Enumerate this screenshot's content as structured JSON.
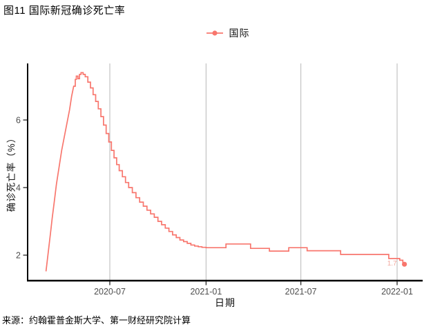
{
  "figure": {
    "title": "图11 国际新冠确诊死亡率",
    "source": "来源：约翰霍普金斯大学、第一财经研究院计算"
  },
  "legend": {
    "position": "top-center",
    "items": [
      {
        "label": "国际",
        "color": "#F8766D",
        "marker": "point-on-line"
      }
    ]
  },
  "axes": {
    "x_title": "日期",
    "y_title": "确诊死亡率（%）"
  },
  "colors": {
    "series": "#F8766D",
    "grid": "#c3c3c3",
    "axis_line": "#000000",
    "tick": "#333333",
    "tick_label": "#4d4d4d",
    "end_label": "#f2a89e",
    "background": "#ffffff"
  },
  "chart_data": {
    "type": "line",
    "title": "图11 国际新冠确诊死亡率",
    "xlabel": "日期",
    "ylabel": "确诊死亡率（%）",
    "legend_position": "top-center",
    "grid": "vertical-major-only",
    "xlim": [
      "2020-01-26",
      "2022-02-19"
    ],
    "ylim": [
      1.25,
      7.67
    ],
    "x_ticks": [
      {
        "date": "2020-07-01",
        "label": "2020-07"
      },
      {
        "date": "2021-01-01",
        "label": "2021-01"
      },
      {
        "date": "2021-07-01",
        "label": "2021-07"
      },
      {
        "date": "2022-01-01",
        "label": "2022-01"
      }
    ],
    "y_ticks": [
      {
        "value": 2,
        "label": "2"
      },
      {
        "value": 4,
        "label": "4"
      },
      {
        "value": 6,
        "label": "6"
      }
    ],
    "series": [
      {
        "name": "国际",
        "color": "#F8766D",
        "style": "step-after",
        "points": [
          [
            "2020-03-01",
            1.52
          ],
          [
            "2020-03-04",
            1.9
          ],
          [
            "2020-03-07",
            2.3
          ],
          [
            "2020-03-10",
            2.7
          ],
          [
            "2020-03-13",
            3.1
          ],
          [
            "2020-03-17",
            3.6
          ],
          [
            "2020-03-21",
            4.1
          ],
          [
            "2020-03-26",
            4.6
          ],
          [
            "2020-03-31",
            5.1
          ],
          [
            "2020-04-05",
            5.5
          ],
          [
            "2020-04-10",
            5.9
          ],
          [
            "2020-04-15",
            6.3
          ],
          [
            "2020-04-19",
            6.7
          ],
          [
            "2020-04-23",
            7.0
          ],
          [
            "2020-04-26",
            7.2
          ],
          [
            "2020-04-28",
            7.3
          ],
          [
            "2020-05-01",
            7.22
          ],
          [
            "2020-05-04",
            7.35
          ],
          [
            "2020-05-07",
            7.4
          ],
          [
            "2020-05-11",
            7.35
          ],
          [
            "2020-05-15",
            7.28
          ],
          [
            "2020-05-20",
            7.12
          ],
          [
            "2020-05-25",
            6.95
          ],
          [
            "2020-05-30",
            6.75
          ],
          [
            "2020-06-04",
            6.55
          ],
          [
            "2020-06-09",
            6.33
          ],
          [
            "2020-06-14",
            6.1
          ],
          [
            "2020-06-19",
            5.85
          ],
          [
            "2020-06-24",
            5.6
          ],
          [
            "2020-06-29",
            5.35
          ],
          [
            "2020-07-04",
            5.1
          ],
          [
            "2020-07-09",
            4.88
          ],
          [
            "2020-07-14",
            4.68
          ],
          [
            "2020-07-19",
            4.5
          ],
          [
            "2020-07-25",
            4.32
          ],
          [
            "2020-07-31",
            4.15
          ],
          [
            "2020-08-06",
            4.0
          ],
          [
            "2020-08-13",
            3.85
          ],
          [
            "2020-08-20",
            3.7
          ],
          [
            "2020-08-27",
            3.57
          ],
          [
            "2020-09-03",
            3.45
          ],
          [
            "2020-09-10",
            3.33
          ],
          [
            "2020-09-17",
            3.22
          ],
          [
            "2020-09-24",
            3.12
          ],
          [
            "2020-10-01",
            3.0
          ],
          [
            "2020-10-08",
            2.9
          ],
          [
            "2020-10-15",
            2.8
          ],
          [
            "2020-10-22",
            2.7
          ],
          [
            "2020-10-29",
            2.6
          ],
          [
            "2020-11-05",
            2.52
          ],
          [
            "2020-11-12",
            2.45
          ],
          [
            "2020-11-19",
            2.4
          ],
          [
            "2020-11-26",
            2.35
          ],
          [
            "2020-12-03",
            2.3
          ],
          [
            "2020-12-10",
            2.27
          ],
          [
            "2020-12-17",
            2.25
          ],
          [
            "2020-12-24",
            2.23
          ],
          [
            "2021-01-01",
            2.22
          ],
          [
            "2021-02-08",
            2.33
          ],
          [
            "2021-03-27",
            2.2
          ],
          [
            "2021-05-02",
            2.12
          ],
          [
            "2021-06-08",
            2.22
          ],
          [
            "2021-07-13",
            2.13
          ],
          [
            "2021-09-15",
            2.02
          ],
          [
            "2021-12-16",
            1.9
          ],
          [
            "2022-01-06",
            1.85
          ],
          [
            "2022-01-12",
            1.78
          ],
          [
            "2022-01-15",
            1.73
          ]
        ]
      }
    ],
    "end_point": {
      "date": "2022-01-15",
      "value": 1.73,
      "label": "1.7"
    }
  }
}
